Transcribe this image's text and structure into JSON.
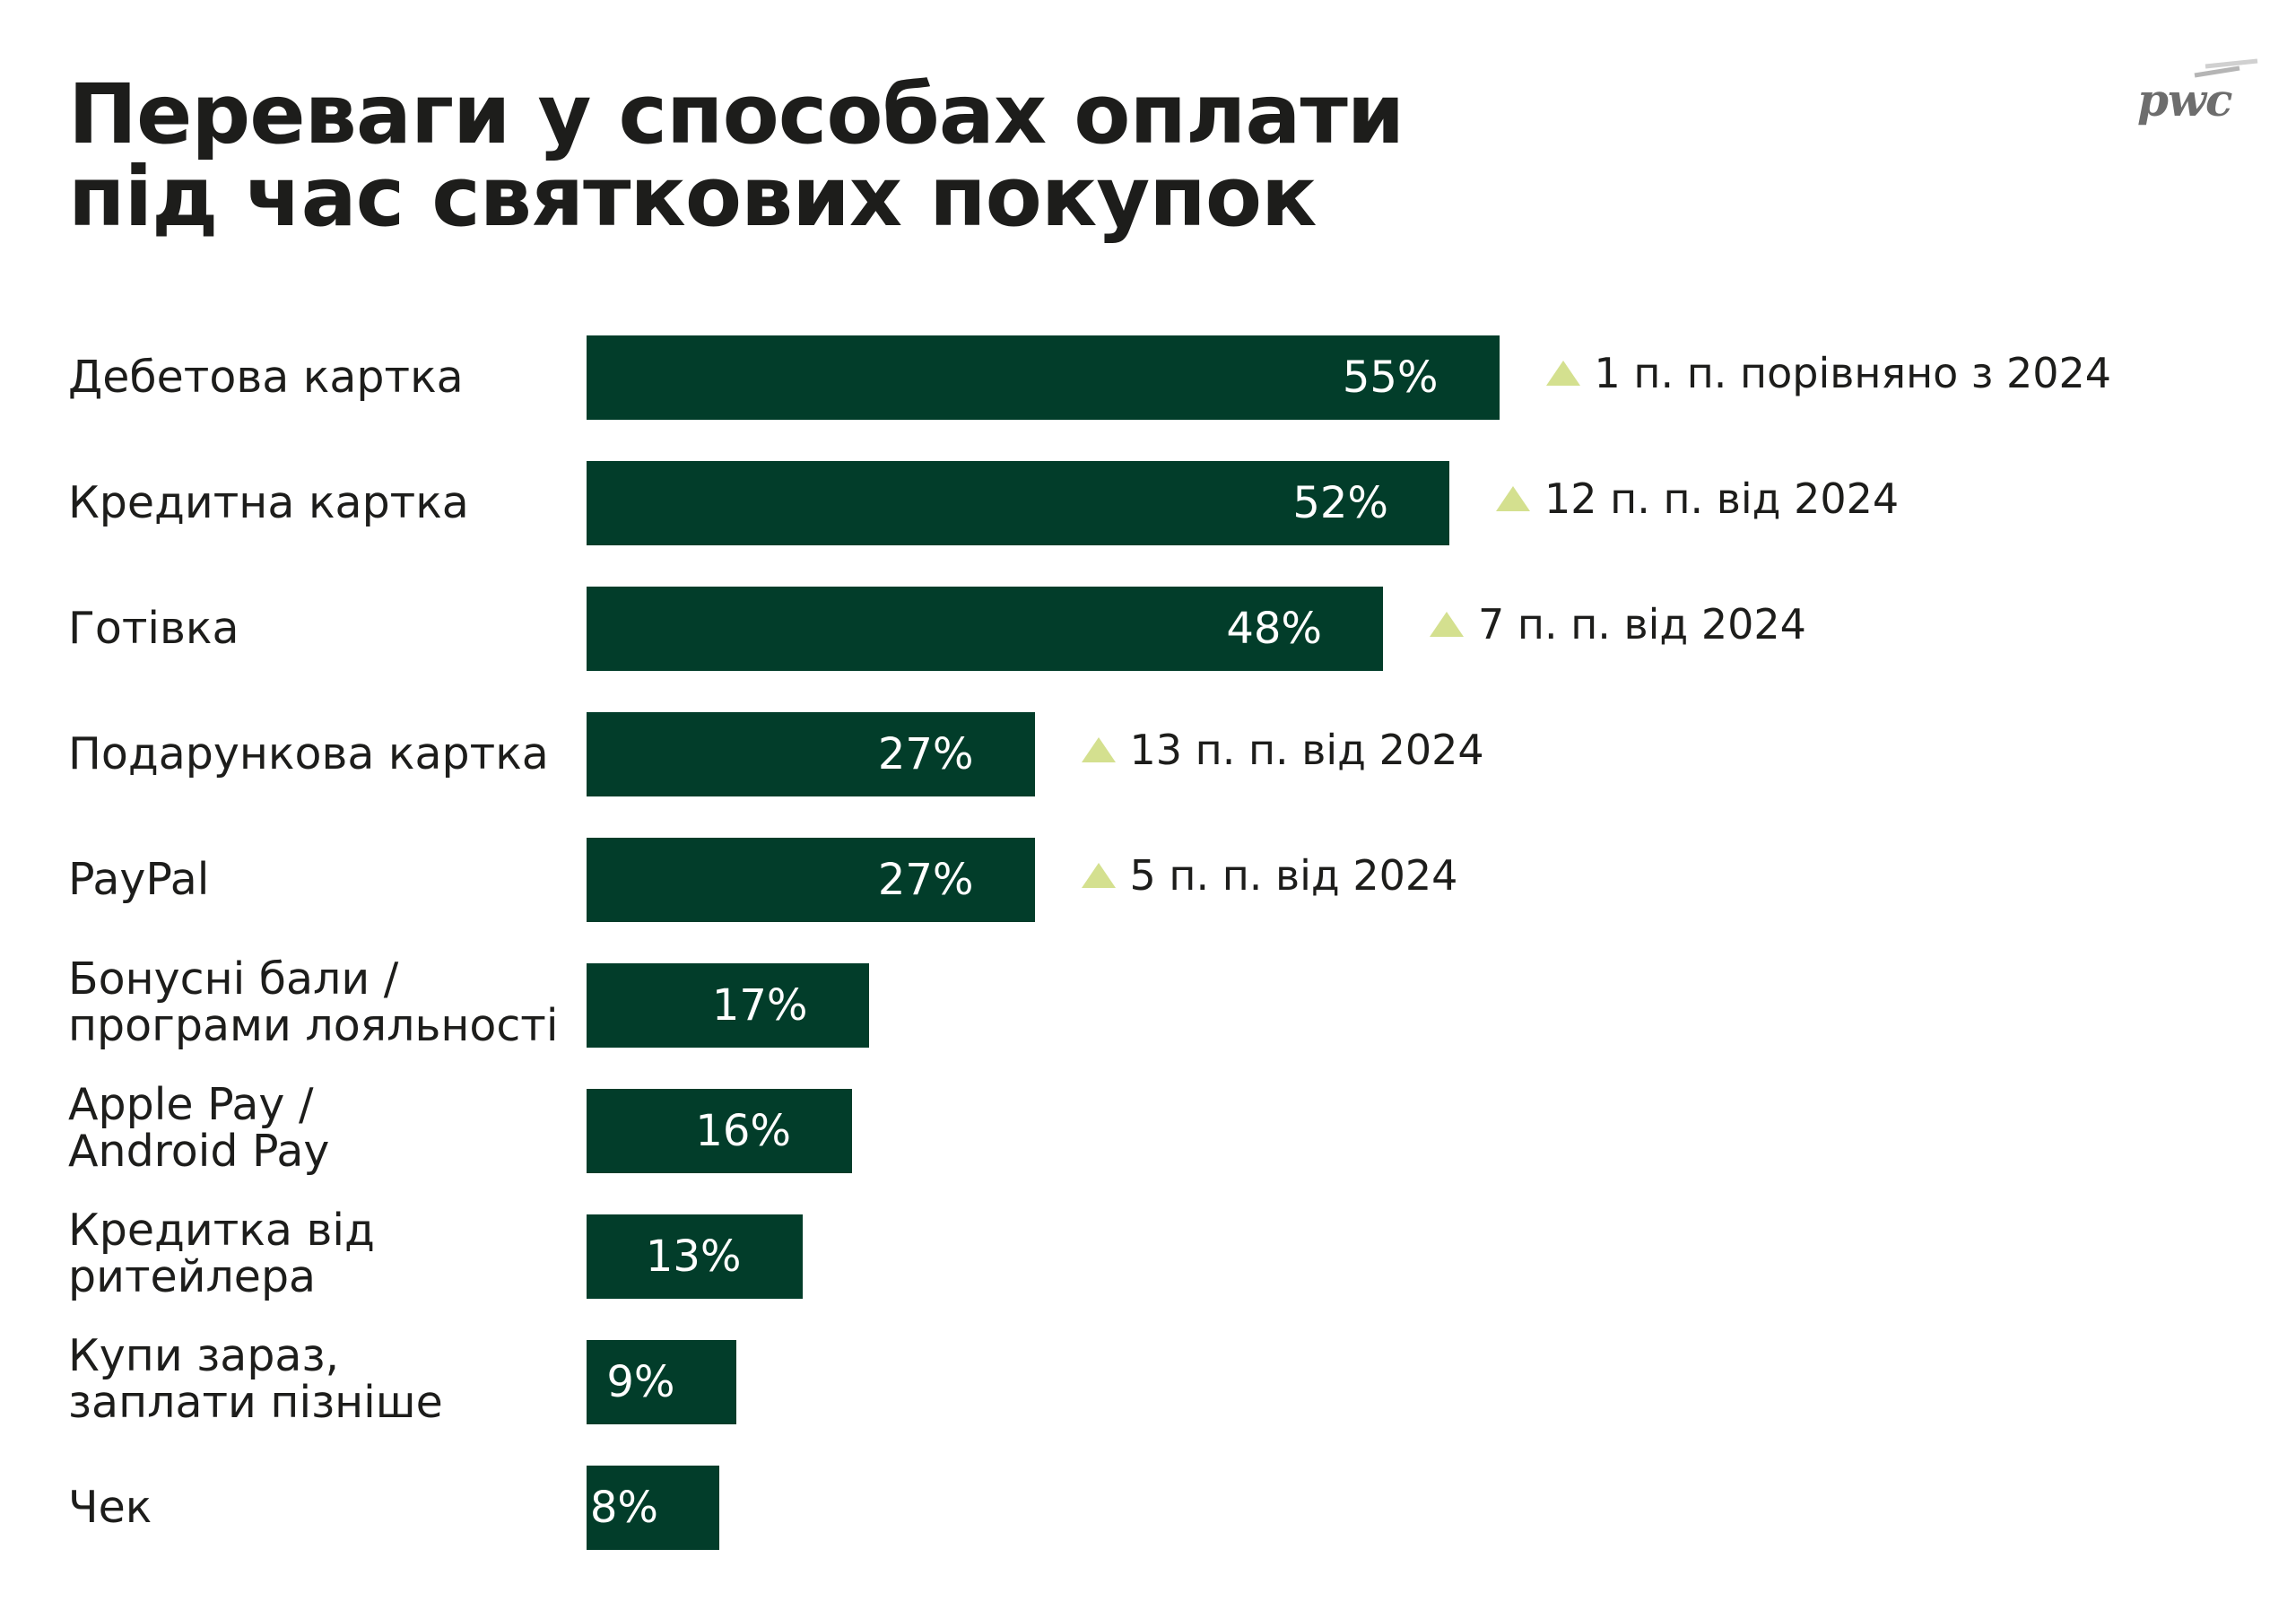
{
  "title_lines": [
    "Переваги у способах оплати",
    "під час святкових покупок"
  ],
  "logo": "pwc",
  "colors": {
    "bar": "#023d2a",
    "triangle": "#d4e08f",
    "text": "#1d1d1b"
  },
  "chart_data": {
    "type": "bar",
    "orientation": "horizontal",
    "title": "Переваги у способах оплати під час святкових покупок",
    "unit": "%",
    "categories": [
      "Дебетова картка",
      "Кредитна картка",
      "Готівка",
      "Подарункова картка",
      "PayPal",
      "Бонусні бали /\nпрограми лояльності",
      "Apple Pay /\nAndroid Pay",
      "Кредитка від\nритейлера",
      "Купи зараз,\nзаплати пізніше",
      "Чек"
    ],
    "values": [
      55,
      52,
      48,
      27,
      27,
      17,
      16,
      13,
      9,
      8
    ],
    "value_labels": [
      "55%",
      "52%",
      "48%",
      "27%",
      "27%",
      "17%",
      "16%",
      "13%",
      "9%",
      "8%"
    ],
    "annotations": [
      "1 п. п. порівняно з 2024",
      "12 п. п. від 2024",
      "7 п. п. від 2024",
      "13 п. п. від 2024",
      "5 п. п. від 2024",
      null,
      null,
      null,
      null,
      null
    ],
    "annotation_icon": "up-triangle-icon"
  }
}
